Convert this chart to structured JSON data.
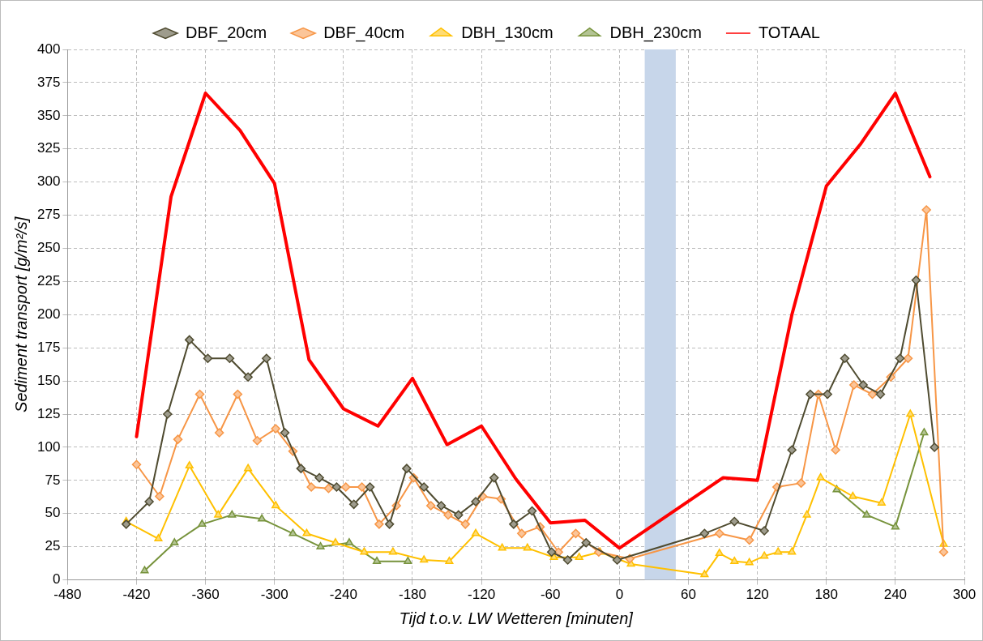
{
  "chart_data": {
    "type": "line",
    "xlabel": "Tijd t.o.v. LW Wetteren [minuten]",
    "ylabel": "Sediment transport [g/m²/s]",
    "xlim": [
      -480,
      300
    ],
    "xticks": [
      -480,
      -420,
      -360,
      -300,
      -240,
      -180,
      -120,
      -60,
      0,
      60,
      120,
      180,
      240,
      300
    ],
    "ylim": [
      0,
      400
    ],
    "yticks": [
      0,
      25,
      50,
      75,
      100,
      125,
      150,
      175,
      200,
      225,
      250,
      275,
      300,
      325,
      350,
      375,
      400
    ],
    "grid": true,
    "legend": "top",
    "line_style": "solid",
    "bands": [
      {
        "axis": "x",
        "from": 22,
        "to": 49,
        "color": "#c7d6ea"
      }
    ],
    "series": [
      {
        "name": "DBF_20cm",
        "color": "#4f4b30",
        "marker": "diamond",
        "x": [
          -429,
          -409,
          -393,
          -374,
          -358,
          -339,
          -323,
          -307,
          -291,
          -277,
          -261,
          -246,
          -231,
          -217,
          -200,
          -185,
          -170,
          -155,
          -140,
          -125,
          -109,
          -92,
          -76,
          -59,
          -45,
          -29,
          -2,
          74,
          100,
          126,
          150,
          166,
          181,
          196,
          212,
          227,
          244,
          258,
          274
        ],
        "values": [
          42,
          59,
          125,
          181,
          167,
          167,
          153,
          167,
          111,
          84,
          77,
          70,
          57,
          70,
          42,
          84,
          70,
          56,
          49,
          59,
          77,
          42,
          52,
          21,
          15,
          28,
          15,
          35,
          44,
          37,
          98,
          140,
          140,
          167,
          147,
          140,
          167,
          226,
          100
        ]
      },
      {
        "name": "DBF_40cm",
        "color": "#f79646",
        "marker": "diamond",
        "x": [
          -420,
          -400,
          -384,
          -365,
          -348,
          -332,
          -315,
          -299,
          -284,
          -268,
          -253,
          -238,
          -224,
          -209,
          -194,
          -179,
          -164,
          -149,
          -134,
          -119,
          -103,
          -85,
          -69,
          -53,
          -38,
          -18,
          9,
          87,
          113,
          137,
          158,
          173,
          188,
          204,
          220,
          236,
          251,
          267,
          282
        ],
        "values": [
          87,
          63,
          106,
          140,
          111,
          140,
          105,
          114,
          97,
          70,
          69,
          70,
          70,
          42,
          56,
          77,
          56,
          49,
          42,
          63,
          61,
          35,
          40,
          21,
          35,
          21,
          16,
          35,
          30,
          70,
          73,
          140,
          98,
          147,
          140,
          153,
          167,
          279,
          21
        ]
      },
      {
        "name": "DBH_130cm",
        "color": "#ffc000",
        "marker": "triangle",
        "x": [
          -429,
          -401,
          -374,
          -349,
          -323,
          -299,
          -272,
          -247,
          -222,
          -197,
          -170,
          -148,
          -125,
          -102,
          -80,
          -57,
          -35,
          -17,
          10,
          74,
          87,
          100,
          113,
          126,
          138,
          150,
          163,
          175,
          203,
          228,
          253,
          282
        ],
        "values": [
          44,
          31,
          86,
          49,
          84,
          56,
          35,
          28,
          21,
          21,
          15,
          14,
          35,
          24,
          24,
          17,
          17,
          21,
          12,
          4,
          20,
          14,
          13,
          18,
          21,
          21,
          49,
          77,
          63,
          58,
          125,
          27
        ]
      },
      {
        "name": "DBH_230cm",
        "color": "#77933c",
        "marker": "triangle",
        "x": [
          -413,
          -387,
          -363,
          -337,
          -311,
          -284,
          -260,
          -235,
          -211,
          -184,
          null,
          189,
          215,
          240,
          265
        ],
        "values": [
          7,
          28,
          42,
          49,
          46,
          35,
          25,
          28,
          14,
          14,
          null,
          68,
          49,
          40,
          111
        ]
      },
      {
        "name": "TOTAAL",
        "color": "#ff0000",
        "marker": "none",
        "x": [
          -420,
          -390,
          -360,
          -330,
          -300,
          -270,
          -240,
          -210,
          -180,
          -150,
          -120,
          -90,
          -60,
          -30,
          0,
          90,
          120,
          150,
          180,
          210,
          240,
          270
        ],
        "values": [
          108,
          289,
          367,
          339,
          299,
          166,
          129,
          116,
          152,
          102,
          116,
          76,
          43,
          45,
          24,
          77,
          75,
          200,
          297,
          329,
          367,
          304
        ]
      }
    ]
  }
}
